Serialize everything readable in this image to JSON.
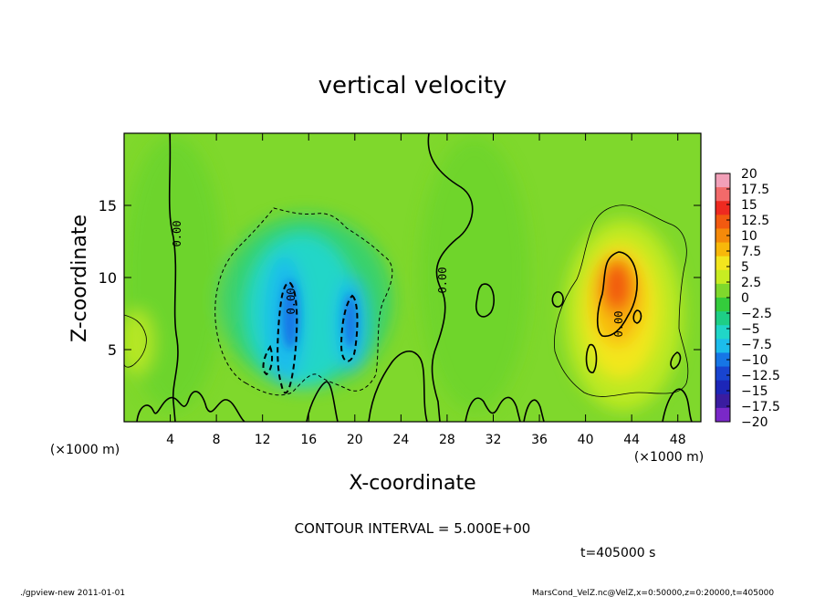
{
  "chart_data": {
    "type": "heatmap",
    "title": "vertical velocity",
    "xlabel": "X-coordinate",
    "ylabel": "Z-coordinate",
    "x_unit": "(×1000 m)",
    "y_unit": "(×1000 m)",
    "xlim": [
      0,
      50
    ],
    "ylim": [
      0,
      20
    ],
    "x_ticks": [
      4,
      8,
      12,
      16,
      20,
      24,
      28,
      32,
      36,
      40,
      44,
      48
    ],
    "y_ticks": [
      5,
      10,
      15
    ],
    "colorbar": {
      "levels": [
        20,
        17.5,
        15,
        12.5,
        10,
        7.5,
        5,
        2.5,
        0,
        -2.5,
        -5,
        -7.5,
        -10,
        -12.5,
        -15,
        -17.5,
        -20
      ],
      "labels": [
        "20",
        "17.5",
        "15",
        "12.5",
        "10",
        "7.5",
        "5",
        "2.5",
        "0",
        "−2.5",
        "−5",
        "−7.5",
        "−10",
        "−12.5",
        "−15",
        "−17.5",
        "−20"
      ],
      "colors": [
        "#f2a0b8",
        "#f26a6a",
        "#ee2a20",
        "#f25a10",
        "#f58a0a",
        "#f8b80a",
        "#f3e61e",
        "#c8ec22",
        "#7fd82c",
        "#34cc3c",
        "#1ecf86",
        "#20d6c8",
        "#1cbcec",
        "#1676e6",
        "#1844d0",
        "#1c26b8",
        "#3a1ca0",
        "#7a28c8"
      ]
    },
    "contour_label": "0.00",
    "features": [
      {
        "kind": "updraft",
        "x": 42.5,
        "z": 9.5,
        "value": 12.5
      },
      {
        "kind": "downdraft",
        "x": 14.5,
        "z": 7.5,
        "value": -12.5
      },
      {
        "kind": "downdraft",
        "x": 19.5,
        "z": 6.5,
        "value": -10
      }
    ],
    "contour_interval": "CONTOUR INTERVAL = 5.000E+00",
    "time": "t=405000 s"
  },
  "footer": {
    "left": "./gpview-new   2011-01-01",
    "right": "MarsCond_VelZ.nc@VelZ,x=0:50000,z=0:20000,t=405000"
  }
}
